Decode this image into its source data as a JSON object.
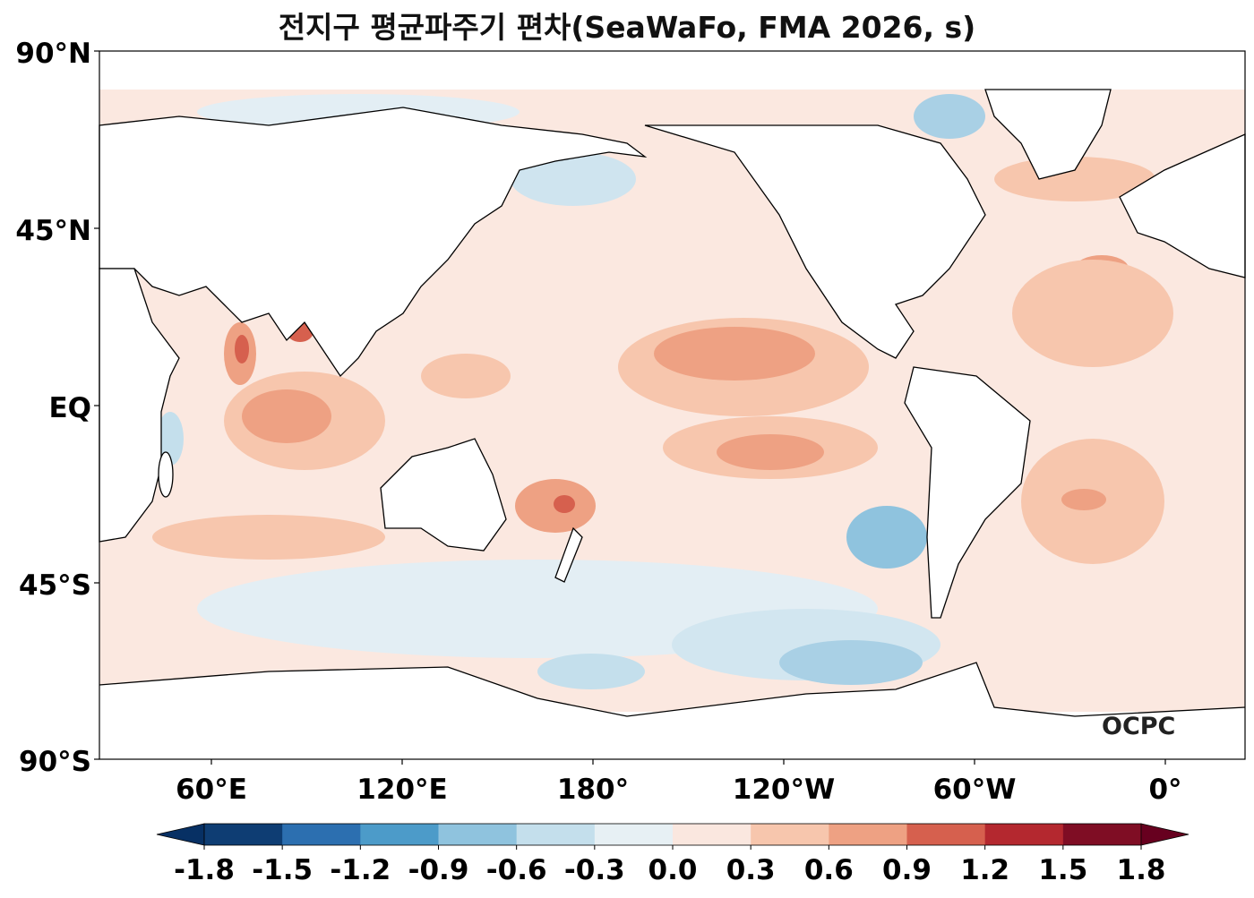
{
  "title": "전지구 평균파주기 편차(SeaWaFo, FMA 2026, s)",
  "lat_ticks": [
    "90°N",
    "45°N",
    "EQ",
    "45°S",
    "90°S"
  ],
  "lon_ticks": [
    "60°E",
    "120°E",
    "180°",
    "120°W",
    "60°W",
    "0°"
  ],
  "colorbar": {
    "ticks": [
      "-1.8",
      "-1.5",
      "-1.2",
      "-0.9",
      "-0.6",
      "-0.3",
      "0.0",
      "0.3",
      "0.6",
      "0.9",
      "1.2",
      "1.5",
      "1.8"
    ],
    "colors": [
      "#0e3d73",
      "#2c6fb0",
      "#4c9bc9",
      "#8fc3de",
      "#c4dfec",
      "#e7f0f4",
      "#fae7df",
      "#f7c6ad",
      "#eea183",
      "#d6604e",
      "#b4282f",
      "#7f0d24"
    ],
    "under": "#073064",
    "over": "#67001f"
  },
  "logo": "OCPC"
}
